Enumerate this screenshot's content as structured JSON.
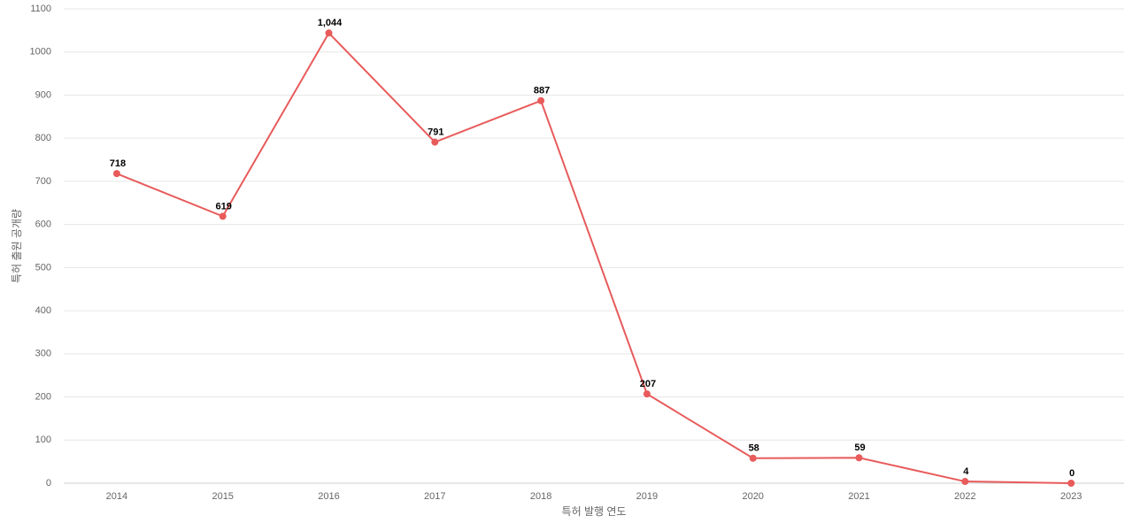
{
  "chart_data": {
    "type": "line",
    "x_label": "특허 발행 연도",
    "y_label": "특허 출원 공개량",
    "categories": [
      "2014",
      "2015",
      "2016",
      "2017",
      "2018",
      "2019",
      "2020",
      "2021",
      "2022",
      "2023"
    ],
    "series": [
      {
        "name": "특허 출원 공개량",
        "color": "#e85b5b",
        "values": [
          718,
          619,
          1044,
          791,
          887,
          207,
          58,
          59,
          4,
          0
        ],
        "value_labels": [
          "718",
          "619",
          "1,044",
          "791",
          "887",
          "207",
          "58",
          "59",
          "4",
          "0"
        ]
      }
    ],
    "ylim": [
      0,
      1100
    ],
    "yticks": [
      0,
      100,
      200,
      300,
      400,
      500,
      600,
      700,
      800,
      900,
      1000,
      1100
    ],
    "grid": true
  }
}
